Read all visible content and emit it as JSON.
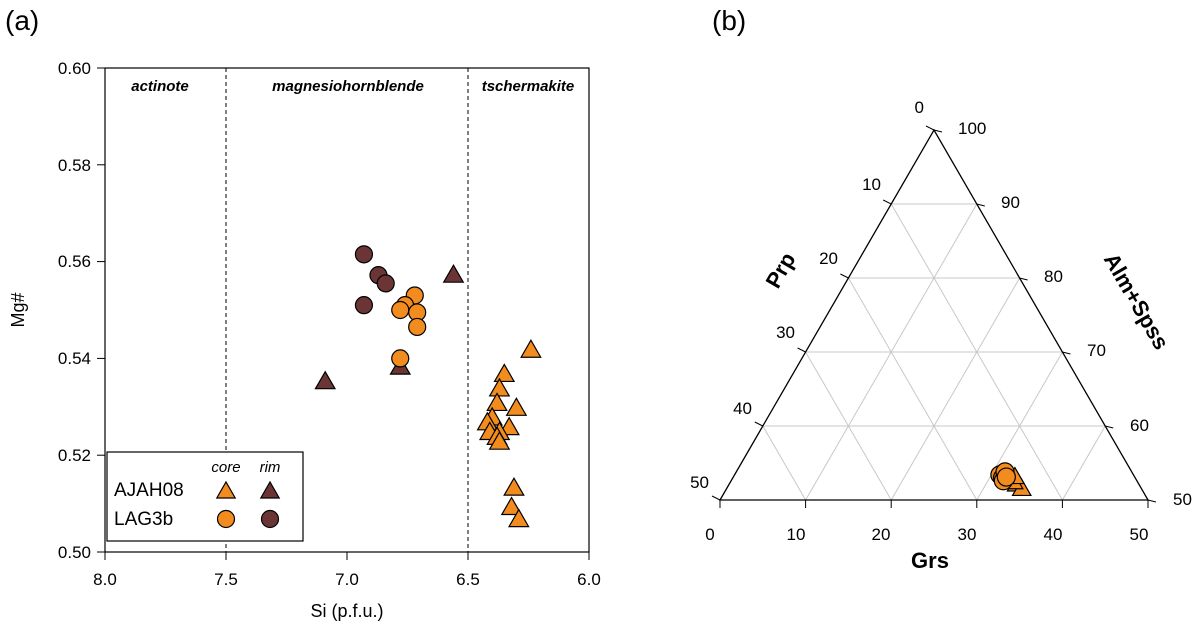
{
  "panels": {
    "a": "(a)",
    "b": "(b)"
  },
  "colors": {
    "core": "#f28c1e",
    "rim": "#6b3535",
    "grid": "#c8c8c8"
  },
  "chart_data": [
    {
      "type": "scatter",
      "panel": "(a)",
      "xlabel": "Si (p.f.u.)",
      "ylabel": "Mg#",
      "xlim": [
        8.0,
        6.0
      ],
      "ylim": [
        0.5,
        0.6
      ],
      "x_reversed": true,
      "xticks": [
        "8.0",
        "7.5",
        "7.0",
        "6.5",
        "6.0"
      ],
      "yticks": [
        "0.50",
        "0.52",
        "0.54",
        "0.56",
        "0.58",
        "0.60"
      ],
      "boundaries": [
        7.5,
        6.5
      ],
      "fields": [
        "actinote",
        "magnesiohornblende",
        "tschermakite"
      ],
      "legend": {
        "location": "bottom-left",
        "headers": [
          "core",
          "rim"
        ],
        "rows": [
          "AJAH08",
          "LAG3b"
        ]
      },
      "series": [
        {
          "name": "AJAH08 core",
          "marker": "triangle",
          "color": "#f28c1e",
          "points": [
            [
              6.24,
              0.542
            ],
            [
              6.35,
              0.537
            ],
            [
              6.37,
              0.534
            ],
            [
              6.38,
              0.531
            ],
            [
              6.3,
              0.53
            ],
            [
              6.4,
              0.528
            ],
            [
              6.42,
              0.527
            ],
            [
              6.33,
              0.526
            ],
            [
              6.37,
              0.525
            ],
            [
              6.41,
              0.525
            ],
            [
              6.38,
              0.524
            ],
            [
              6.37,
              0.523
            ],
            [
              6.31,
              0.5135
            ],
            [
              6.32,
              0.5095
            ],
            [
              6.29,
              0.507
            ]
          ]
        },
        {
          "name": "AJAH08 rim",
          "marker": "triangle",
          "color": "#6b3535",
          "points": [
            [
              7.09,
              0.5355
            ],
            [
              6.78,
              0.5385
            ],
            [
              6.56,
              0.5575
            ]
          ]
        },
        {
          "name": "LAG3b core",
          "marker": "circle",
          "color": "#f28c1e",
          "points": [
            [
              6.72,
              0.553
            ],
            [
              6.76,
              0.551
            ],
            [
              6.78,
              0.55
            ],
            [
              6.71,
              0.5495
            ],
            [
              6.71,
              0.5465
            ],
            [
              6.78,
              0.54
            ]
          ]
        },
        {
          "name": "LAG3b rim",
          "marker": "circle",
          "color": "#6b3535",
          "points": [
            [
              6.93,
              0.5615
            ],
            [
              6.87,
              0.5572
            ],
            [
              6.84,
              0.5555
            ],
            [
              6.93,
              0.551
            ]
          ]
        }
      ]
    },
    {
      "type": "scatter",
      "subtype": "ternary",
      "panel": "(b)",
      "axes": {
        "bottom": "Grs",
        "left": "Prp",
        "right": "Alm+Spss"
      },
      "bottom_ticks": [
        "0",
        "10",
        "20",
        "30",
        "40",
        "50"
      ],
      "left_ticks": [
        "0",
        "10",
        "20",
        "30",
        "40",
        "50"
      ],
      "right_ticks": [
        "100",
        "90",
        "80",
        "70",
        "60",
        "50"
      ],
      "series": [
        {
          "name": "AJAH08 core",
          "marker": "triangle",
          "color": "#f28c1e",
          "points": [
            {
              "Grs": 32.3,
              "Prp": 2.8,
              "Alm+Spss": 64.9
            },
            {
              "Grs": 33.5,
              "Prp": 2.3,
              "Alm+Spss": 64.2
            },
            {
              "Grs": 34.4,
              "Prp": 1.7,
              "Alm+Spss": 63.9
            },
            {
              "Grs": 33.0,
              "Prp": 2.6,
              "Alm+Spss": 64.4
            },
            {
              "Grs": 32.8,
              "Prp": 3.3,
              "Alm+Spss": 63.9
            }
          ]
        },
        {
          "name": "LAG3b core",
          "marker": "circle",
          "color": "#f28c1e",
          "points": [
            {
              "Grs": 31.0,
              "Prp": 3.4,
              "Alm+Spss": 65.6
            },
            {
              "Grs": 31.5,
              "Prp": 3.0,
              "Alm+Spss": 65.5
            },
            {
              "Grs": 31.8,
              "Prp": 2.6,
              "Alm+Spss": 65.6
            },
            {
              "Grs": 31.4,
              "Prp": 3.8,
              "Alm+Spss": 64.8
            },
            {
              "Grs": 31.9,
              "Prp": 3.1,
              "Alm+Spss": 65.0
            }
          ]
        }
      ]
    }
  ]
}
